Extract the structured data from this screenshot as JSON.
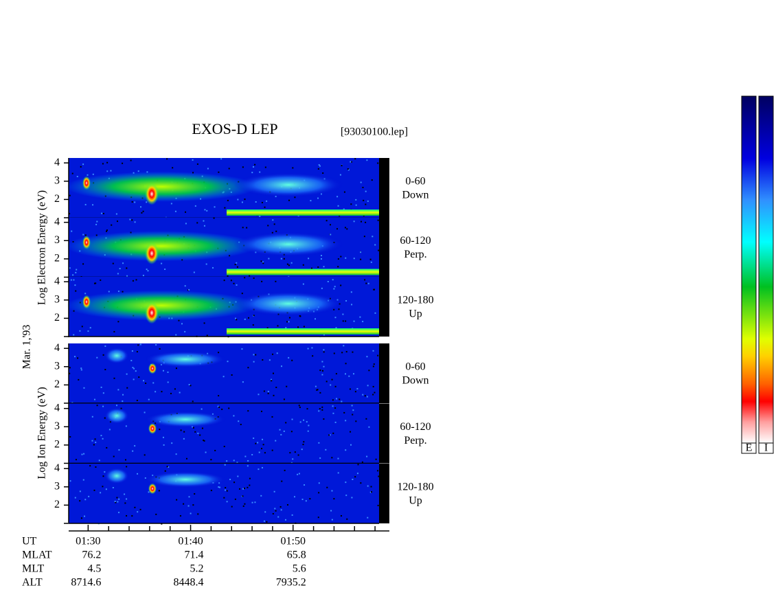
{
  "title": "EXOS-D LEP",
  "file": "[93030100.lep]",
  "date": "Mar. 1,'93",
  "groups": [
    {
      "label": "Log Electron Energy (eV)",
      "panels": [
        {
          "angle": "0-60",
          "direction": "Down"
        },
        {
          "angle": "60-120",
          "direction": "Perp."
        },
        {
          "angle": "120-180",
          "direction": "Up"
        }
      ]
    },
    {
      "label": "Log Ion Energy (eV)",
      "panels": [
        {
          "angle": "0-60",
          "direction": "Down"
        },
        {
          "angle": "60-120",
          "direction": "Perp."
        },
        {
          "angle": "120-180",
          "direction": "Up"
        }
      ]
    }
  ],
  "ylim": [
    1,
    4.27
  ],
  "yticks": [
    2,
    3,
    4
  ],
  "xlim": [
    88.1,
    119.4
  ],
  "xticks": [
    {
      "value": 90,
      "label": "01:30"
    },
    {
      "value": 100,
      "label": "01:40"
    },
    {
      "value": 110,
      "label": "01:50"
    }
  ],
  "xticks_minor": [
    92,
    94,
    96,
    98,
    102,
    104,
    106,
    108,
    112,
    114,
    116,
    118
  ],
  "x_label": "UT",
  "orbit": [
    {
      "name": "MLAT",
      "values": [
        76.2,
        71.4,
        65.8
      ]
    },
    {
      "name": "MLT",
      "values": [
        4.5,
        5.2,
        5.6
      ]
    },
    {
      "name": "ALT",
      "values": [
        8714.6,
        8448.4,
        7935.2
      ]
    }
  ],
  "colorbars": [
    "E",
    "I"
  ]
}
